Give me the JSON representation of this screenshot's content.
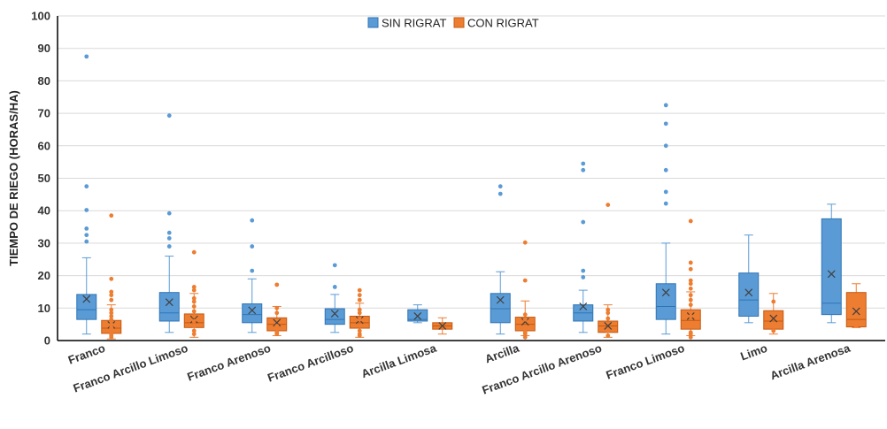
{
  "chart_data": {
    "type": "box",
    "ylabel": "TIEMPO DE RIEGO (HORAS/HA)",
    "xlabel": "",
    "ylim": [
      0,
      100
    ],
    "yticks": [
      0,
      10,
      20,
      30,
      40,
      50,
      60,
      70,
      80,
      90,
      100
    ],
    "grid": true,
    "legend_position": "top-center",
    "categories": [
      "Franco",
      "Franco Arcillo Limoso",
      "Franco Arenoso",
      "Franco Arcilloso",
      "Arcilla Limosa",
      "Arcilla",
      "Franco Arcillo Arenoso",
      "Franco Limoso",
      "Limo",
      "Arcilla Arenosa"
    ],
    "series": [
      {
        "name": "SIN RIGRAT",
        "color": "#5B9BD5",
        "border": "#2E75B6",
        "boxes": [
          {
            "min": 2,
            "q1": 6.5,
            "median": 9.5,
            "q3": 14.2,
            "max": 25.5,
            "mean": 12.8,
            "outliers": [
              30.5,
              32.5,
              34.5,
              40.2,
              47.5,
              87.5
            ]
          },
          {
            "min": 2.5,
            "q1": 6,
            "median": 8.5,
            "q3": 14.8,
            "max": 26,
            "mean": 11.8,
            "outliers": [
              29,
              31.5,
              33.2,
              39.2,
              69.3
            ]
          },
          {
            "min": 2.5,
            "q1": 5.5,
            "median": 8,
            "q3": 11.3,
            "max": 19,
            "mean": 9.3,
            "outliers": [
              21.5,
              29,
              37
            ]
          },
          {
            "min": 2.5,
            "q1": 5,
            "median": 6.5,
            "q3": 9.8,
            "max": 14.2,
            "mean": 8.3,
            "outliers": [
              16.5,
              23.2
            ]
          },
          {
            "min": 5.5,
            "q1": 6,
            "median": 6.5,
            "q3": 9.5,
            "max": 11,
            "mean": 7.5,
            "outliers": []
          },
          {
            "min": 2,
            "q1": 5.5,
            "median": 9.8,
            "q3": 14.5,
            "max": 21.2,
            "mean": 12.5,
            "outliers": [
              45.2,
              47.5
            ]
          },
          {
            "min": 2.5,
            "q1": 6,
            "median": 8.5,
            "q3": 11,
            "max": 15.5,
            "mean": 10.5,
            "outliers": [
              19.5,
              21.5,
              36.5,
              52.5,
              54.5
            ]
          },
          {
            "min": 2,
            "q1": 6.5,
            "median": 10.5,
            "q3": 17.5,
            "max": 30,
            "mean": 14.8,
            "outliers": [
              42.2,
              45.8,
              52.5,
              60,
              66.8,
              72.5
            ]
          },
          {
            "min": 5.5,
            "q1": 7.5,
            "median": 12.5,
            "q3": 20.8,
            "max": 32.5,
            "mean": 14.8,
            "outliers": []
          },
          {
            "min": 5.5,
            "q1": 8,
            "median": 11.5,
            "q3": 37.5,
            "max": 42,
            "mean": 20.5,
            "outliers": []
          }
        ]
      },
      {
        "name": "CON RIGRAT",
        "color": "#ED7D31",
        "border": "#C55A11",
        "boxes": [
          {
            "min": 0.5,
            "q1": 2.2,
            "median": 3.8,
            "q3": 6.2,
            "max": 11,
            "mean": 4.8,
            "outliers": [
              1,
              1.5,
              2,
              3,
              4,
              5,
              6.5,
              7.5,
              8.5,
              9.5,
              12.5,
              14,
              15,
              19,
              38.5
            ]
          },
          {
            "min": 1,
            "q1": 4,
            "median": 5.5,
            "q3": 8.2,
            "max": 14.5,
            "mean": 6.5,
            "outliers": [
              2,
              3,
              4.5,
              6,
              7.5,
              9,
              10.5,
              12,
              13,
              15.5,
              16.5,
              27.2
            ]
          },
          {
            "min": 1.5,
            "q1": 3,
            "median": 5,
            "q3": 7,
            "max": 10.5,
            "mean": 5.5,
            "outliers": [
              2,
              2.5,
              3.5,
              4.5,
              8.5,
              10,
              17.2
            ]
          },
          {
            "min": 1,
            "q1": 3.8,
            "median": 5.5,
            "q3": 7.5,
            "max": 11.5,
            "mean": 6.3,
            "outliers": [
              1.5,
              2,
              3,
              4.5,
              6.5,
              8.5,
              9.5,
              12.5,
              14,
              15.5
            ]
          },
          {
            "min": 2,
            "q1": 3.5,
            "median": 4.5,
            "q3": 5.5,
            "max": 7,
            "mean": 4.5,
            "outliers": []
          },
          {
            "min": 1.5,
            "q1": 3,
            "median": 5,
            "q3": 7.2,
            "max": 12.2,
            "mean": 5.8,
            "outliers": [
              1,
              2,
              2.5,
              3.5,
              6.5,
              8,
              18.5,
              30.2
            ]
          },
          {
            "min": 1,
            "q1": 2.5,
            "median": 4.5,
            "q3": 6,
            "max": 11,
            "mean": 4.5,
            "outliers": [
              1.5,
              3,
              6.8,
              8.5,
              9.5,
              41.8
            ]
          },
          {
            "min": 1.5,
            "q1": 3.5,
            "median": 6.2,
            "q3": 9.5,
            "max": 15,
            "mean": 7.5,
            "outliers": [
              1,
              2,
              2.5,
              4.5,
              7.5,
              11,
              12.5,
              14,
              16,
              17.5,
              18.5,
              22,
              24,
              36.8
            ]
          },
          {
            "min": 2,
            "q1": 3.5,
            "median": 6,
            "q3": 9.2,
            "max": 14.5,
            "mean": 6.8,
            "outliers": [
              3,
              12
            ]
          },
          {
            "min": 4,
            "q1": 4.2,
            "median": 6.5,
            "q3": 14.8,
            "max": 17.5,
            "mean": 9,
            "outliers": [
              4.5,
              12
            ]
          }
        ]
      }
    ]
  }
}
